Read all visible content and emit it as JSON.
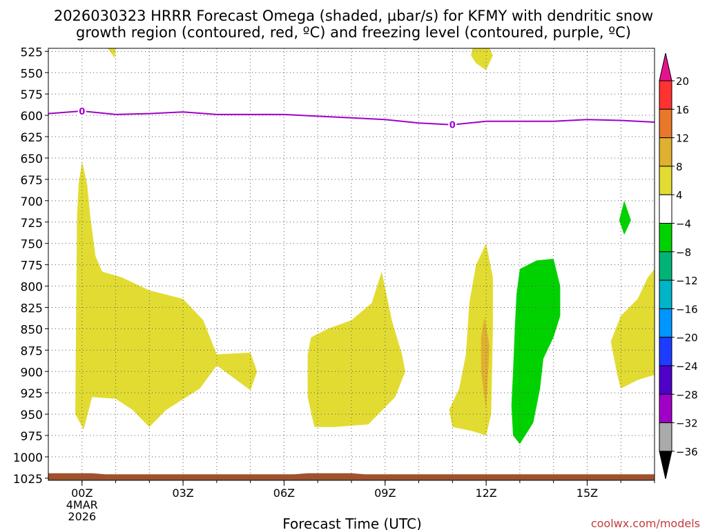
{
  "chart_data": {
    "type": "heatmap",
    "title_line1": "2026030323 HRRR Forecast Omega (shaded, µbar/s) for KFMY with dendritic snow",
    "title_line2": "growth region (contoured, red, ºC) and freezing level (contoured, purple, ºC)",
    "xlabel": "Forecast Time (UTC)",
    "watermark": "coolwx.com/models",
    "x_range_hours": [
      -1.0,
      17.0
    ],
    "x_ticks": [
      {
        "hour": 0,
        "label": "00Z",
        "sub1": "4MAR",
        "sub2": "2026"
      },
      {
        "hour": 3,
        "label": "03Z"
      },
      {
        "hour": 6,
        "label": "06Z"
      },
      {
        "hour": 9,
        "label": "09Z"
      },
      {
        "hour": 12,
        "label": "12Z"
      },
      {
        "hour": 15,
        "label": "15Z"
      }
    ],
    "y_levels_hpa": [
      525,
      550,
      575,
      600,
      625,
      650,
      675,
      700,
      725,
      750,
      775,
      800,
      825,
      850,
      875,
      900,
      925,
      950,
      975,
      1000,
      1025
    ],
    "colorbar": {
      "labels": [
        "20",
        "16",
        "12",
        "8",
        "4",
        "−4",
        "−8",
        "−12",
        "−16",
        "−20",
        "−24",
        "−28",
        "−32",
        "−36"
      ],
      "colors": [
        "#ff3232",
        "#e9782a",
        "#e0b030",
        "#e2dc32",
        "#ffffff",
        "#00d200",
        "#00b478",
        "#00b4c8",
        "#0096ff",
        "#1e3cff",
        "#5000c8",
        "#a000c8",
        "#aaaaaa"
      ],
      "top_arrow_color": "#e6148c",
      "bottom_arrow_color": "#000000"
    },
    "freezing_level": {
      "color": "#a000c8",
      "label": "0",
      "label_hours": [
        0.0,
        11.0
      ],
      "points": [
        [
          -1.0,
          598
        ],
        [
          0.0,
          595
        ],
        [
          0.5,
          597
        ],
        [
          1.0,
          599
        ],
        [
          2.0,
          598
        ],
        [
          3.0,
          596
        ],
        [
          4.0,
          599
        ],
        [
          5.0,
          599
        ],
        [
          6.0,
          599
        ],
        [
          7.0,
          601
        ],
        [
          8.0,
          603
        ],
        [
          9.0,
          605
        ],
        [
          10.0,
          609
        ],
        [
          11.0,
          611
        ],
        [
          12.0,
          607
        ],
        [
          13.0,
          607
        ],
        [
          14.0,
          607
        ],
        [
          15.0,
          605
        ],
        [
          16.0,
          606
        ],
        [
          17.0,
          608
        ]
      ]
    },
    "omega_regions": [
      {
        "value_range": "4 to 8",
        "color": "#e2dc32",
        "points": [
          [
            0.75,
            521
          ],
          [
            1.0,
            521
          ],
          [
            0.97,
            533
          ],
          [
            0.85,
            526
          ]
        ]
      },
      {
        "value_range": "4 to 8",
        "color": "#e2dc32",
        "points": [
          [
            11.6,
            521
          ],
          [
            12.1,
            521
          ],
          [
            12.2,
            530
          ],
          [
            12.0,
            547
          ],
          [
            11.7,
            539
          ],
          [
            11.55,
            530
          ]
        ]
      },
      {
        "value_range": "4 to 8",
        "color": "#e2dc32",
        "points": [
          [
            0.0,
            654
          ],
          [
            0.15,
            680
          ],
          [
            0.25,
            720
          ],
          [
            0.4,
            765
          ],
          [
            0.6,
            783
          ],
          [
            1.2,
            790
          ],
          [
            2.0,
            805
          ],
          [
            3.0,
            815
          ],
          [
            3.6,
            840
          ],
          [
            4.0,
            880
          ],
          [
            5.0,
            878
          ],
          [
            5.2,
            900
          ],
          [
            5.0,
            922
          ],
          [
            4.0,
            893
          ],
          [
            3.5,
            920
          ],
          [
            2.5,
            945
          ],
          [
            2.0,
            965
          ],
          [
            1.5,
            945
          ],
          [
            1.0,
            932
          ],
          [
            0.3,
            930
          ],
          [
            0.05,
            968
          ],
          [
            -0.2,
            950
          ],
          [
            -0.15,
            718
          ],
          [
            -0.1,
            680
          ]
        ]
      },
      {
        "value_range": "4 to 8",
        "color": "#e2dc32",
        "points": [
          [
            8.9,
            783
          ],
          [
            9.2,
            840
          ],
          [
            9.5,
            880
          ],
          [
            9.6,
            900
          ],
          [
            9.3,
            930
          ],
          [
            8.5,
            962
          ],
          [
            7.5,
            965
          ],
          [
            6.9,
            965
          ],
          [
            6.7,
            930
          ],
          [
            6.7,
            880
          ],
          [
            6.8,
            860
          ],
          [
            7.3,
            850
          ],
          [
            8.0,
            840
          ],
          [
            8.6,
            820
          ]
        ]
      },
      {
        "value_range": "4 to 8",
        "color": "#e2dc32",
        "points": [
          [
            12.0,
            750
          ],
          [
            12.2,
            790
          ],
          [
            12.2,
            850
          ],
          [
            12.15,
            950
          ],
          [
            12.0,
            975
          ],
          [
            11.6,
            970
          ],
          [
            11.0,
            965
          ],
          [
            10.9,
            945
          ],
          [
            11.2,
            920
          ],
          [
            11.4,
            880
          ],
          [
            11.5,
            820
          ],
          [
            11.7,
            775
          ]
        ]
      },
      {
        "value_range": "8 to 12",
        "color": "#e0b030",
        "points": [
          [
            11.95,
            836
          ],
          [
            12.1,
            870
          ],
          [
            12.0,
            945
          ],
          [
            11.85,
            900
          ],
          [
            11.85,
            860
          ]
        ]
      },
      {
        "value_range": "4 to 8",
        "color": "#e2dc32",
        "points": [
          [
            17.0,
            780
          ],
          [
            17.0,
            904
          ],
          [
            16.5,
            910
          ],
          [
            16.0,
            920
          ],
          [
            15.9,
            905
          ],
          [
            15.7,
            865
          ],
          [
            16.0,
            835
          ],
          [
            16.5,
            815
          ],
          [
            16.8,
            790
          ]
        ]
      },
      {
        "value_range": "-8 to -4",
        "color": "#00d200",
        "points": [
          [
            13.5,
            770
          ],
          [
            14.0,
            768
          ],
          [
            14.2,
            800
          ],
          [
            14.2,
            835
          ],
          [
            14.0,
            860
          ],
          [
            13.7,
            885
          ],
          [
            13.6,
            920
          ],
          [
            13.4,
            960
          ],
          [
            13.0,
            985
          ],
          [
            12.8,
            975
          ],
          [
            12.75,
            940
          ],
          [
            12.8,
            900
          ],
          [
            12.85,
            850
          ],
          [
            12.9,
            810
          ],
          [
            13.0,
            780
          ]
        ]
      },
      {
        "value_range": "-8 to -4",
        "color": "#00d200",
        "points": [
          [
            16.1,
            700
          ],
          [
            16.3,
            723
          ],
          [
            16.1,
            740
          ],
          [
            15.95,
            723
          ]
        ]
      }
    ],
    "ground": {
      "color": "#a0522d",
      "top_hpa": 1020
    }
  }
}
